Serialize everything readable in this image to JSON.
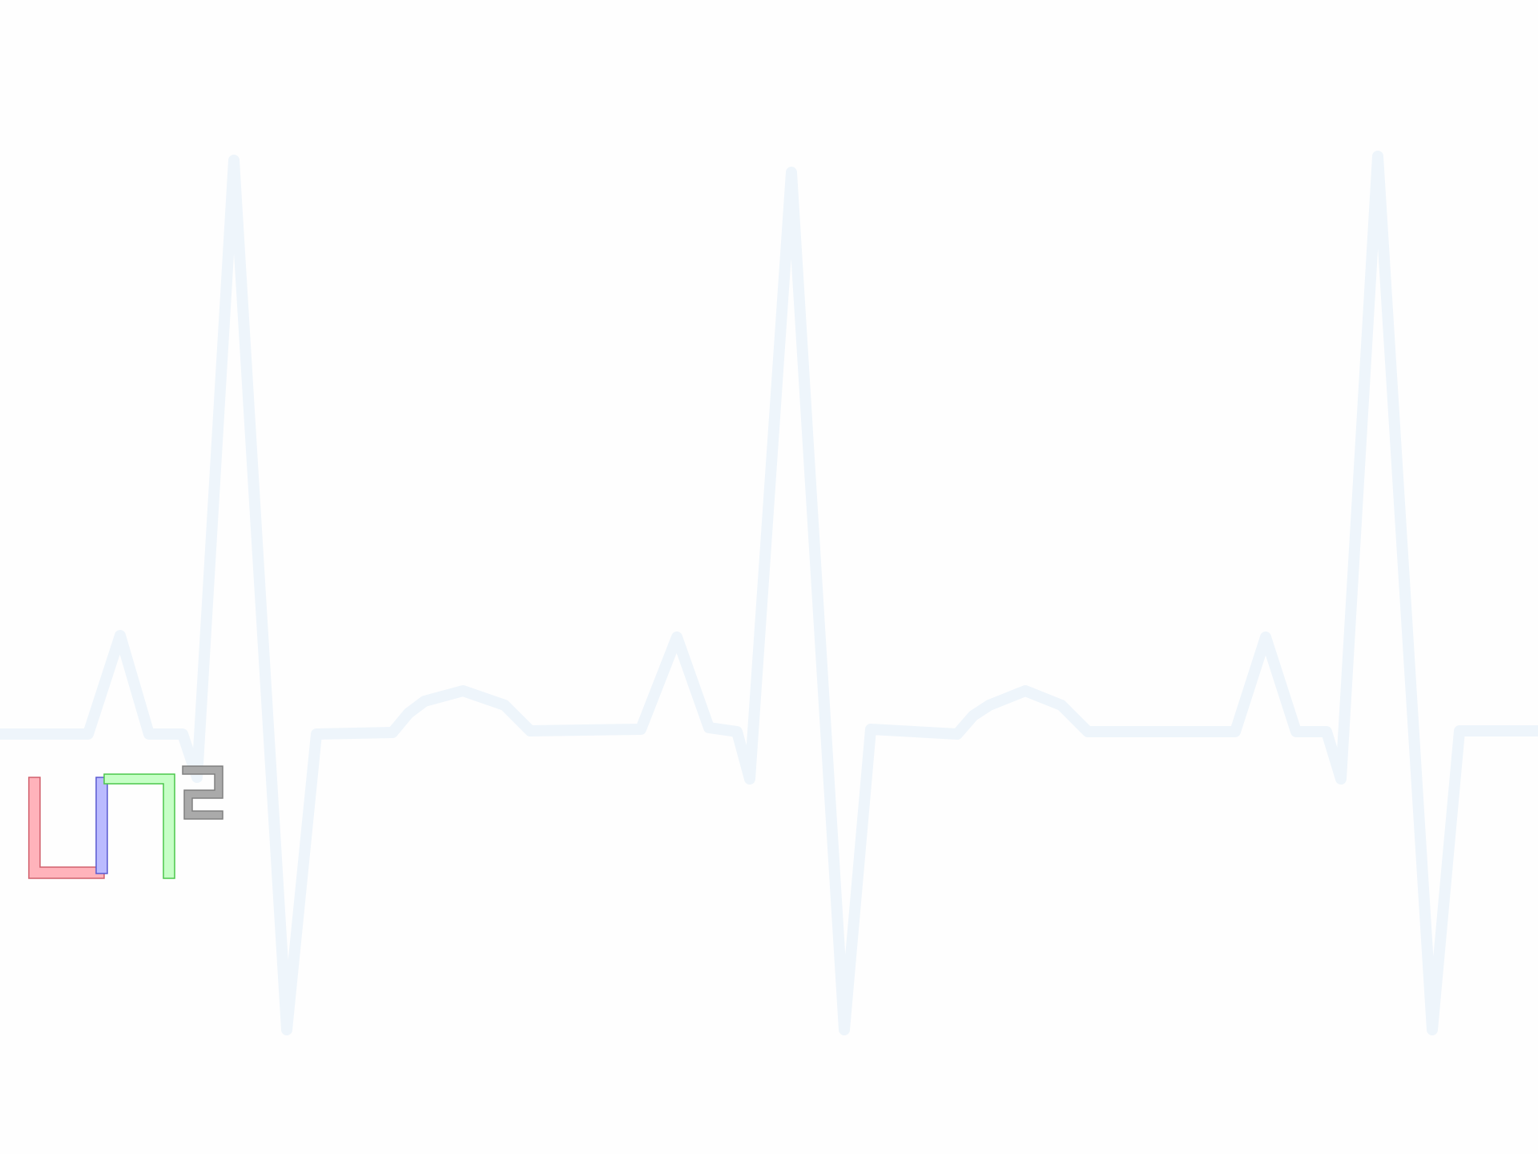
{
  "background_color": "#fefefe",
  "waveform": {
    "color": "#eef5fb",
    "shape": "ecg-trace",
    "beats_visible": 3
  },
  "logo": {
    "segments": [
      {
        "name": "red",
        "color": "#ffb3bb",
        "edge": "#d0606d"
      },
      {
        "name": "blue",
        "color": "#bbbbff",
        "edge": "#5a5ad0"
      },
      {
        "name": "green",
        "color": "#c6ffc6",
        "edge": "#4ac74a"
      }
    ],
    "superscript": {
      "text": "2",
      "color": "#aaaaaa",
      "edge": "#808080"
    }
  }
}
